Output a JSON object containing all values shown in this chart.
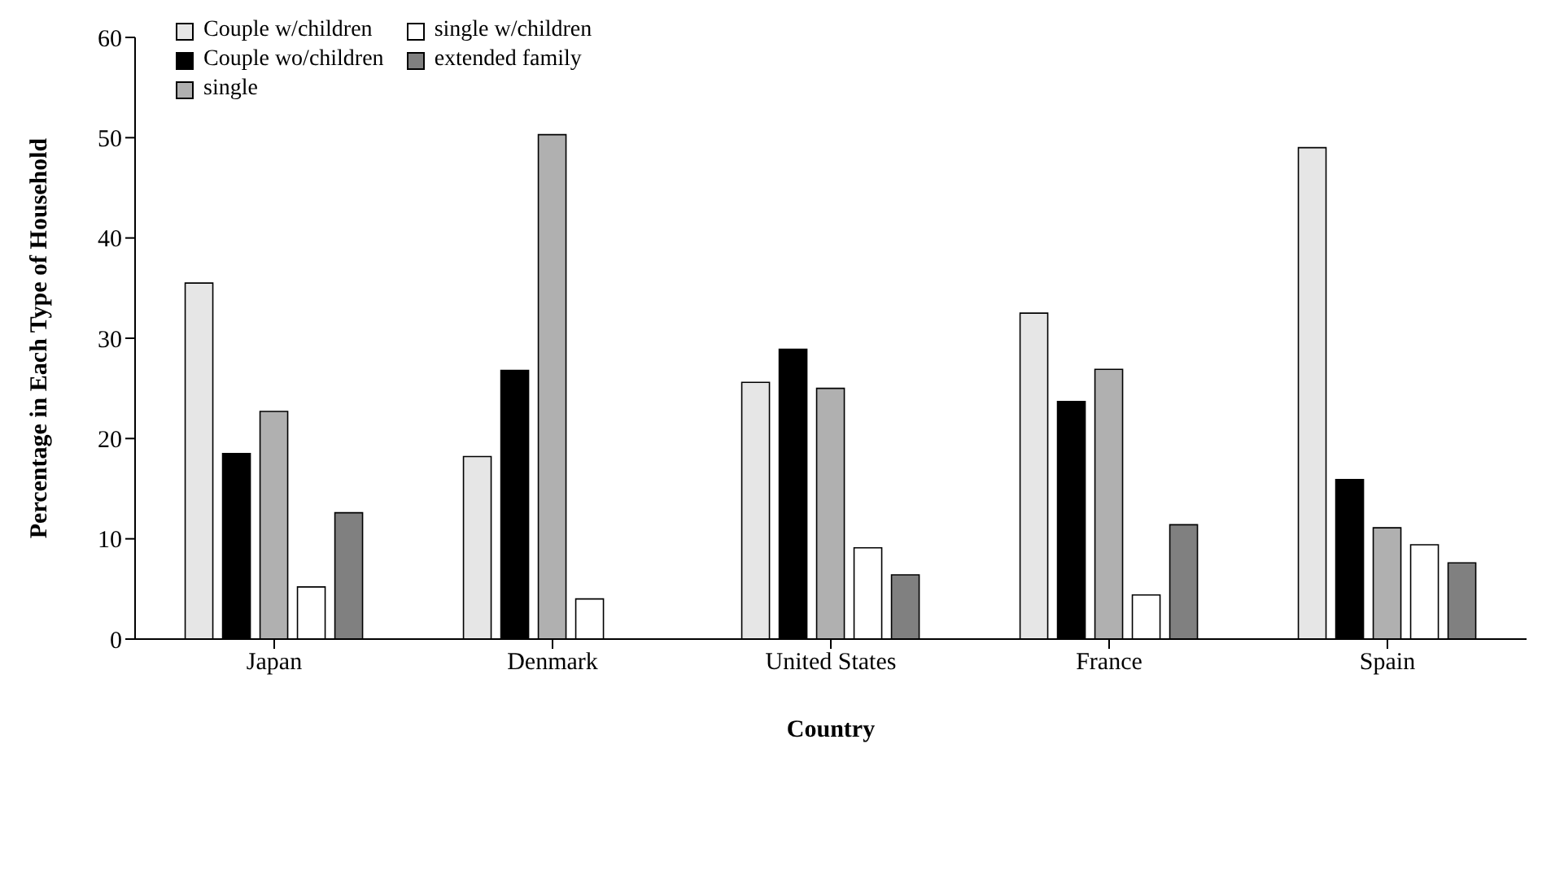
{
  "chart_data": {
    "type": "bar",
    "xlabel": "Country",
    "ylabel": "Percentage in Each Type of Household",
    "categories": [
      "Japan",
      "Denmark",
      "United States",
      "France",
      "Spain"
    ],
    "series": [
      {
        "name": "Couple w/children",
        "color": "#e6e6e6",
        "values": [
          35.5,
          18.2,
          25.6,
          32.5,
          49.0
        ]
      },
      {
        "name": "Couple wo/children",
        "color": "#000000",
        "values": [
          18.5,
          26.8,
          28.9,
          23.7,
          15.9
        ]
      },
      {
        "name": "single",
        "color": "#b0b0b0",
        "values": [
          22.7,
          50.3,
          25.0,
          26.9,
          11.1
        ]
      },
      {
        "name": "single w/children",
        "color": "#ffffff",
        "values": [
          5.2,
          4.0,
          9.1,
          4.4,
          9.4
        ]
      },
      {
        "name": "extended family",
        "color": "#808080",
        "values": [
          12.6,
          null,
          6.4,
          11.4,
          7.6
        ]
      }
    ],
    "ylim": [
      0,
      60
    ],
    "yticks": [
      0,
      10,
      20,
      30,
      40,
      50,
      60
    ],
    "grid": false,
    "legend": "top left"
  }
}
